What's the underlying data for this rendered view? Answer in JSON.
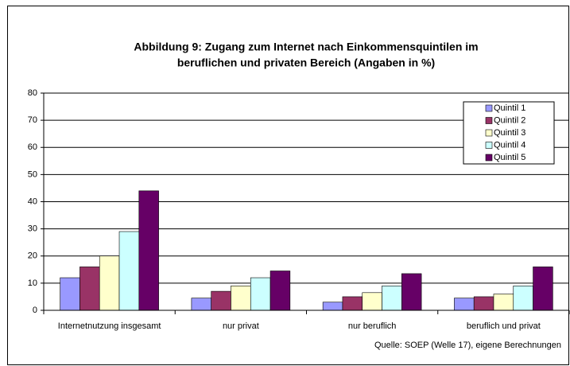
{
  "chart_data": {
    "type": "bar",
    "title": [
      "Abbildung 9: Zugang zum Internet nach Einkommensquintilen im",
      "beruflichen und privaten Bereich (Angaben in %)"
    ],
    "categories": [
      "Internetnutzung insgesamt",
      "nur privat",
      "nur beruflich",
      "beruflich und privat"
    ],
    "series": [
      {
        "name": "Quintil 1",
        "color": "#9999ff",
        "values": [
          12,
          4.5,
          3,
          4.5
        ]
      },
      {
        "name": "Quintil 2",
        "color": "#993366",
        "values": [
          16,
          7,
          5,
          5
        ]
      },
      {
        "name": "Quintil 3",
        "color": "#ffffcc",
        "values": [
          20,
          9,
          6.5,
          6
        ]
      },
      {
        "name": "Quintil 4",
        "color": "#ccffff",
        "values": [
          29,
          12,
          9,
          9
        ]
      },
      {
        "name": "Quintil 5",
        "color": "#660066",
        "values": [
          44,
          14.5,
          13.5,
          16
        ]
      }
    ],
    "ylim": [
      0,
      80
    ],
    "yticks": [
      0,
      10,
      20,
      30,
      40,
      50,
      60,
      70,
      80
    ],
    "grid": true,
    "legend": "top-right",
    "source": "Quelle: SOEP (Welle 17), eigene Berechnungen"
  }
}
